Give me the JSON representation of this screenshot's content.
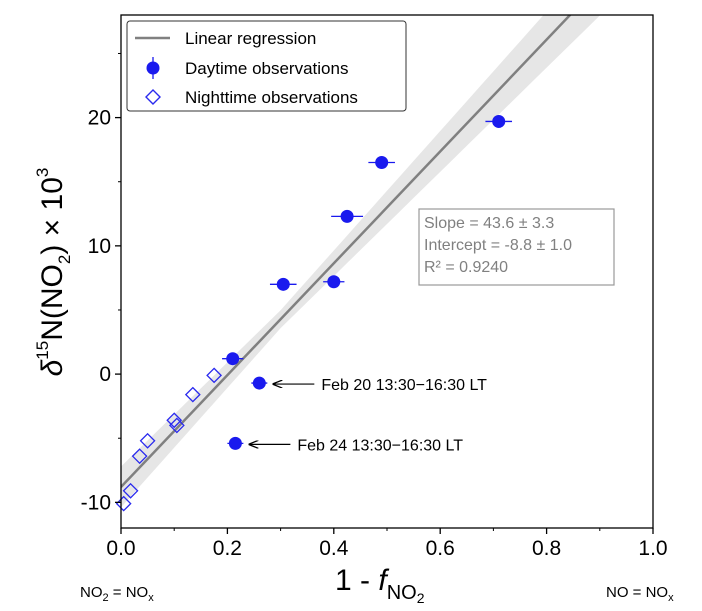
{
  "chart_data": {
    "type": "scatter",
    "xlim": [
      0.0,
      1.0
    ],
    "ylim": [
      -12,
      28
    ],
    "x_ticks": [
      0.0,
      0.2,
      0.4,
      0.6,
      0.8,
      1.0
    ],
    "x_tick_labels": [
      "0.0",
      "0.2",
      "0.4",
      "0.6",
      "0.8",
      "1.0"
    ],
    "y_ticks": [
      -10,
      0,
      10,
      20
    ],
    "y_tick_labels": [
      "-10",
      "0",
      "10",
      "20"
    ],
    "xlabel": {
      "main": "1 - ",
      "italic": "f",
      "sub": "NO",
      "sub2": "2"
    },
    "ylabel": {
      "delta": "δ",
      "sup": "15",
      "main": "N(NO",
      "sub": "2",
      "tail": ") × 10",
      "sup2": "3"
    },
    "x_end_labels": {
      "left": {
        "a": "NO",
        "a_sub": "2",
        "b": " = NO",
        "b_sub": "x"
      },
      "right": {
        "a": "NO = NO",
        "a_sub": "x"
      }
    },
    "legend": {
      "position": "top-left",
      "entries": [
        {
          "label": "Linear regression",
          "kind": "line"
        },
        {
          "label": "Daytime observations",
          "kind": "filled-circle"
        },
        {
          "label": "Nighttime observations",
          "kind": "open-diamond"
        }
      ]
    },
    "regression": {
      "slope": 43.6,
      "intercept": -8.8,
      "band_halfwidth_at_0": 1.0,
      "band_slope_err": 3.3,
      "color": "#808080"
    },
    "stats_box": [
      "Slope = 43.6 ± 3.3",
      "Intercept = -8.8 ± 1.0",
      "R² = 0.9240"
    ],
    "series": [
      {
        "name": "Daytime observations",
        "marker": "filled-circle",
        "color": "#1a1aee",
        "points": [
          {
            "x": 0.21,
            "y": 1.2,
            "xerr": 0.02
          },
          {
            "x": 0.26,
            "y": -0.7,
            "xerr": 0.015
          },
          {
            "x": 0.215,
            "y": -5.4,
            "xerr": 0.015
          },
          {
            "x": 0.305,
            "y": 7.0,
            "xerr": 0.025
          },
          {
            "x": 0.4,
            "y": 7.2,
            "xerr": 0.02
          },
          {
            "x": 0.425,
            "y": 12.3,
            "xerr": 0.03
          },
          {
            "x": 0.49,
            "y": 16.5,
            "xerr": 0.025
          },
          {
            "x": 0.71,
            "y": 19.7,
            "xerr": 0.025
          }
        ]
      },
      {
        "name": "Nighttime observations",
        "marker": "open-diamond",
        "color": "#2a2aee",
        "points": [
          {
            "x": 0.005,
            "y": -10.1
          },
          {
            "x": 0.018,
            "y": -9.1
          },
          {
            "x": 0.035,
            "y": -6.4
          },
          {
            "x": 0.05,
            "y": -5.2
          },
          {
            "x": 0.1,
            "y": -3.6
          },
          {
            "x": 0.105,
            "y": -4.0
          },
          {
            "x": 0.135,
            "y": -1.6
          },
          {
            "x": 0.175,
            "y": -0.1
          }
        ]
      }
    ],
    "annotations": [
      {
        "text": "Feb 20 13:30−16:30 LT",
        "point": {
          "x": 0.26,
          "y": -0.7
        }
      },
      {
        "text": "Feb 24 13:30−16:30 LT",
        "point": {
          "x": 0.215,
          "y": -5.4
        }
      }
    ]
  }
}
